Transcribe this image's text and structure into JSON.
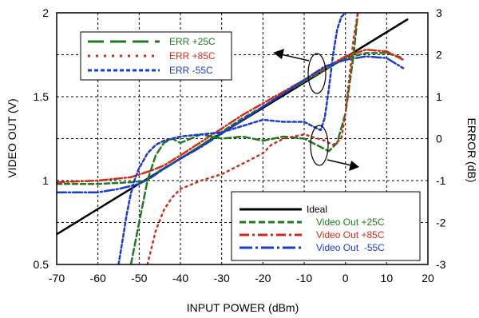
{
  "chart_data": {
    "type": "line",
    "xlabel": "INPUT POWER (dBm)",
    "ylabel_left": "VIDEO OUT (V)",
    "ylabel_right": "ERROR (dB)",
    "xlim": [
      -70,
      20
    ],
    "ylim_left": [
      0.5,
      2
    ],
    "ylim_right": [
      -3,
      3
    ],
    "x_ticks": [
      "-70",
      "-60",
      "-50",
      "-40",
      "-30",
      "-20",
      "-10",
      "0",
      "10",
      "20"
    ],
    "y_left_ticks": [
      "0.5",
      "1",
      "1.5",
      "2"
    ],
    "y_right_ticks": [
      "-3",
      "-2",
      "-1",
      "0",
      "1",
      "2",
      "3"
    ],
    "grid": true,
    "legend_error": {
      "placement": "top-left",
      "entries": [
        {
          "label": "ERR +25C",
          "color": "#1e7a1e",
          "dash": "long-dash"
        },
        {
          "label": "ERR +85C",
          "color": "#d42a1a",
          "dash": "dotted"
        },
        {
          "label": "ERR -55C",
          "color": "#1a3ccc",
          "dash": "short-dash"
        }
      ]
    },
    "legend_video": {
      "placement": "bottom-right",
      "entries": [
        {
          "label": "Ideal",
          "color": "#000000",
          "dash": "solid"
        },
        {
          "label": "Video Out +25C",
          "color": "#1e7a1e",
          "dash": "dashed"
        },
        {
          "label": "Video Out +85C",
          "color": "#d42a1a",
          "dash": "dash-dot"
        },
        {
          "label": "Video Out  -55C",
          "color": "#1a3ccc",
          "dash": "long-dash-dot"
        }
      ]
    },
    "series": [
      {
        "name": "Ideal",
        "axis": "left",
        "color": "#000000",
        "dash": "none",
        "width": 2.5,
        "x": [
          -70,
          15
        ],
        "y": [
          0.68,
          1.96
        ]
      },
      {
        "name": "Video Out +25C",
        "axis": "left",
        "color": "#1e7a1e",
        "dash": "6,4",
        "width": 2.5,
        "x": [
          -70,
          -60,
          -52,
          -48,
          -45,
          -40,
          -35,
          -30,
          -25,
          -20,
          -15,
          -10,
          -5,
          0,
          5,
          10,
          14
        ],
        "y": [
          0.98,
          0.98,
          0.99,
          1.0,
          1.06,
          1.13,
          1.21,
          1.29,
          1.37,
          1.44,
          1.52,
          1.59,
          1.66,
          1.73,
          1.76,
          1.76,
          1.73
        ]
      },
      {
        "name": "Video Out +85C",
        "axis": "left",
        "color": "#d42a1a",
        "dash": "10,3,2,3",
        "width": 2.5,
        "x": [
          -70,
          -60,
          -52,
          -47,
          -44,
          -40,
          -35,
          -30,
          -25,
          -20,
          -15,
          -10,
          -5,
          0,
          5,
          10,
          14
        ],
        "y": [
          0.99,
          1.0,
          1.02,
          1.06,
          1.09,
          1.15,
          1.23,
          1.31,
          1.39,
          1.46,
          1.53,
          1.6,
          1.67,
          1.74,
          1.78,
          1.77,
          1.72
        ]
      },
      {
        "name": "Video Out  -55C",
        "axis": "left",
        "color": "#1a3ccc",
        "dash": "12,3,2,3",
        "width": 2.5,
        "x": [
          -70,
          -60,
          -55,
          -50,
          -47,
          -44,
          -40,
          -35,
          -30,
          -25,
          -20,
          -15,
          -10,
          -5,
          0,
          5,
          10,
          14
        ],
        "y": [
          0.93,
          0.93,
          0.95,
          0.98,
          1.02,
          1.07,
          1.13,
          1.2,
          1.28,
          1.36,
          1.44,
          1.52,
          1.6,
          1.68,
          1.72,
          1.74,
          1.73,
          1.67
        ]
      },
      {
        "name": "ERR +25C",
        "axis": "right",
        "color": "#1e7a1e",
        "dash": "8,4",
        "width": 2.5,
        "x": [
          -52,
          -50,
          -48,
          -46,
          -44,
          -42,
          -40,
          -35,
          -30,
          -25,
          -20,
          -15,
          -10,
          -6,
          -4,
          -2,
          0,
          2,
          3,
          4
        ],
        "y": [
          -3.0,
          -2.0,
          -1.0,
          -0.4,
          -0.1,
          0.0,
          -0.1,
          0.1,
          0.0,
          0.05,
          -0.05,
          0.05,
          0.0,
          -0.2,
          -0.3,
          -0.1,
          0.6,
          2.0,
          3.0,
          3.1
        ]
      },
      {
        "name": "ERR +85C",
        "axis": "right",
        "color": "#d42a1a",
        "dash": "2,5",
        "width": 2.5,
        "x": [
          -48,
          -46,
          -44,
          -42,
          -40,
          -35,
          -30,
          -25,
          -20,
          -18,
          -15,
          -10,
          -5,
          -3,
          -1,
          0,
          1,
          2,
          3
        ],
        "y": [
          -3.0,
          -2.2,
          -1.7,
          -1.4,
          -1.2,
          -1.0,
          -0.85,
          -0.6,
          -0.35,
          -0.15,
          0.0,
          0.1,
          -0.05,
          -0.15,
          0.0,
          0.6,
          1.5,
          2.4,
          3.0
        ]
      },
      {
        "name": "ERR -55C",
        "axis": "right",
        "color": "#1a3ccc",
        "dash": "4,3",
        "width": 2.5,
        "x": [
          -55,
          -54,
          -53,
          -52,
          -51,
          -50,
          -48,
          -46,
          -44,
          -40,
          -35,
          -30,
          -25,
          -20,
          -15,
          -10,
          -8,
          -6,
          -5,
          -4,
          -3,
          -2,
          -1,
          0
        ],
        "y": [
          -3.0,
          -2.4,
          -1.8,
          -1.3,
          -0.95,
          -0.7,
          -0.35,
          -0.15,
          -0.05,
          0.05,
          0.1,
          0.15,
          0.3,
          0.45,
          0.4,
          0.4,
          0.3,
          0.2,
          0.5,
          1.2,
          2.0,
          2.6,
          2.9,
          3.0
        ]
      }
    ]
  }
}
